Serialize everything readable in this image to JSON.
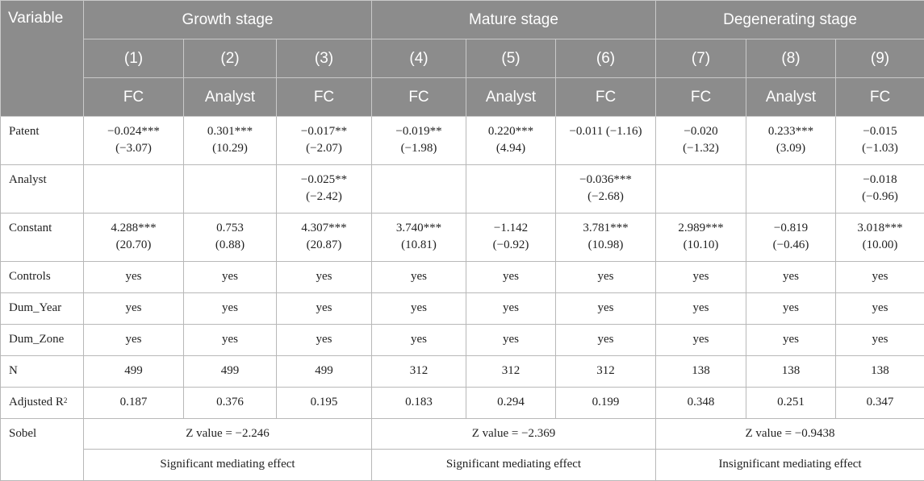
{
  "header": {
    "variable_label": "Variable",
    "groups": [
      "Growth stage",
      "Mature stage",
      "Degenerating stage"
    ],
    "column_numbers": [
      "(1)",
      "(2)",
      "(3)",
      "(4)",
      "(5)",
      "(6)",
      "(7)",
      "(8)",
      "(9)"
    ],
    "column_vars": [
      "FC",
      "Analyst",
      "FC",
      "FC",
      "Analyst",
      "FC",
      "FC",
      "Analyst",
      "FC"
    ]
  },
  "rows": {
    "patent": {
      "label": "Patent",
      "cells": [
        {
          "coef": "−0.024***",
          "t": "(−3.07)"
        },
        {
          "coef": "0.301***",
          "t": "(10.29)"
        },
        {
          "coef": "−0.017**",
          "t": "(−2.07)"
        },
        {
          "coef": "−0.019**",
          "t": "(−1.98)"
        },
        {
          "coef": "0.220***",
          "t": "(4.94)"
        },
        {
          "coef": "−0.011 (−1.16)",
          "t": ""
        },
        {
          "coef": "−0.020",
          "t": "(−1.32)"
        },
        {
          "coef": "0.233***",
          "t": "(3.09)"
        },
        {
          "coef": "−0.015",
          "t": "(−1.03)"
        }
      ]
    },
    "analyst": {
      "label": "Analyst",
      "cells": [
        {
          "coef": "",
          "t": ""
        },
        {
          "coef": "",
          "t": ""
        },
        {
          "coef": "−0.025**",
          "t": "(−2.42)"
        },
        {
          "coef": "",
          "t": ""
        },
        {
          "coef": "",
          "t": ""
        },
        {
          "coef": "−0.036***",
          "t": "(−2.68)"
        },
        {
          "coef": "",
          "t": ""
        },
        {
          "coef": "",
          "t": ""
        },
        {
          "coef": "−0.018",
          "t": "(−0.96)"
        }
      ]
    },
    "constant": {
      "label": "Constant",
      "cells": [
        {
          "coef": "4.288***",
          "t": "(20.70)"
        },
        {
          "coef": "0.753",
          "t": "(0.88)"
        },
        {
          "coef": "4.307***",
          "t": "(20.87)"
        },
        {
          "coef": "3.740***",
          "t": "(10.81)"
        },
        {
          "coef": "−1.142",
          "t": "(−0.92)"
        },
        {
          "coef": "3.781***",
          "t": "(10.98)"
        },
        {
          "coef": "2.989***",
          "t": "(10.10)"
        },
        {
          "coef": "−0.819",
          "t": "(−0.46)"
        },
        {
          "coef": "3.018***",
          "t": "(10.00)"
        }
      ]
    },
    "controls": {
      "label": "Controls",
      "values": [
        "yes",
        "yes",
        "yes",
        "yes",
        "yes",
        "yes",
        "yes",
        "yes",
        "yes"
      ]
    },
    "dum_year": {
      "label": "Dum_Year",
      "values": [
        "yes",
        "yes",
        "yes",
        "yes",
        "yes",
        "yes",
        "yes",
        "yes",
        "yes"
      ]
    },
    "dum_zone": {
      "label": "Dum_Zone",
      "values": [
        "yes",
        "yes",
        "yes",
        "yes",
        "yes",
        "yes",
        "yes",
        "yes",
        "yes"
      ]
    },
    "n": {
      "label": "N",
      "values": [
        "499",
        "499",
        "499",
        "312",
        "312",
        "312",
        "138",
        "138",
        "138"
      ]
    },
    "adj_r2": {
      "label": "Adjusted R",
      "label_sup": "2",
      "values": [
        "0.187",
        "0.376",
        "0.195",
        "0.183",
        "0.294",
        "0.199",
        "0.348",
        "0.251",
        "0.347"
      ]
    },
    "sobel": {
      "label": "Sobel",
      "z_values": [
        "Z value = −2.246",
        "Z value = −2.369",
        "Z value = −0.9438"
      ],
      "effects": [
        "Significant mediating effect",
        "Significant mediating effect",
        "Insignificant mediating effect"
      ]
    }
  }
}
